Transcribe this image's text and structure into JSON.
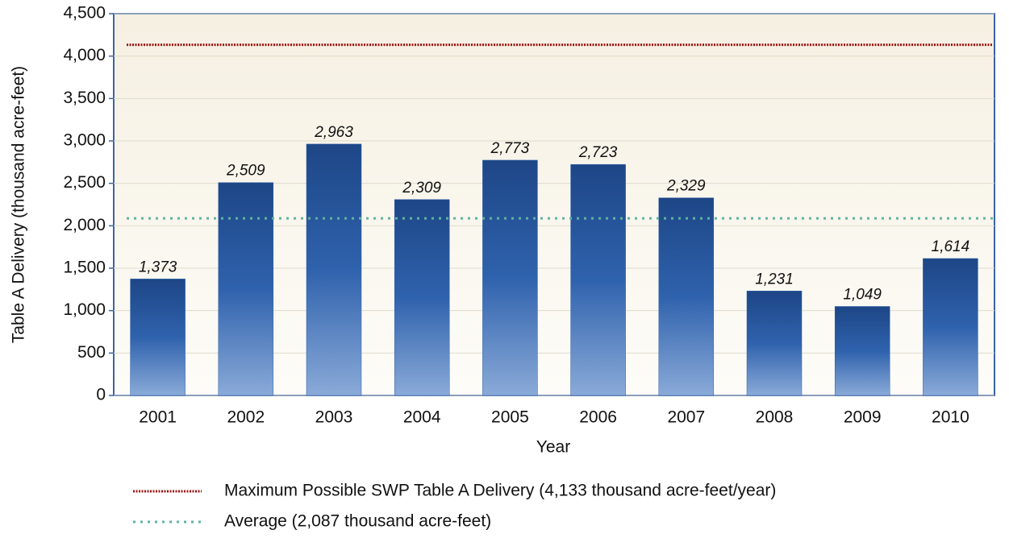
{
  "chart_data": {
    "type": "bar",
    "xlabel": "Year",
    "ylabel": "Table A Delivery (thousand acre-feet)",
    "categories": [
      "2001",
      "2002",
      "2003",
      "2004",
      "2005",
      "2006",
      "2007",
      "2008",
      "2009",
      "2010"
    ],
    "values": [
      1373,
      2509,
      2963,
      2309,
      2773,
      2723,
      2329,
      1231,
      1049,
      1614
    ],
    "value_labels": [
      "1,373",
      "2,509",
      "2,963",
      "2,309",
      "2,773",
      "2,723",
      "2,329",
      "1,231",
      "1,049",
      "1,614"
    ],
    "color": "#2b5fa8",
    "ylim": [
      0,
      4500
    ],
    "yticks": [
      0,
      500,
      {
        "value": 1000,
        "label": "1,000"
      },
      {
        "value": 1500,
        "label": "1,500"
      },
      {
        "value": 2000,
        "label": "2,000"
      },
      {
        "value": 2500,
        "label": "2,500"
      },
      {
        "value": 3000,
        "label": "3,000"
      },
      {
        "value": 3500,
        "label": "3,500"
      },
      {
        "value": 4000,
        "label": "4,000"
      },
      {
        "value": 4500,
        "label": "4,500"
      }
    ],
    "grid": true,
    "reference_lines": [
      {
        "name": "Maximum Possible SWP Table A Delivery (4,133 thousand acre-feet/year)",
        "value": 4133,
        "color": "#a01010"
      },
      {
        "name": "Average (2,087 thousand acre-feet)",
        "value": 2087,
        "color": "#5fb3a0"
      }
    ]
  }
}
